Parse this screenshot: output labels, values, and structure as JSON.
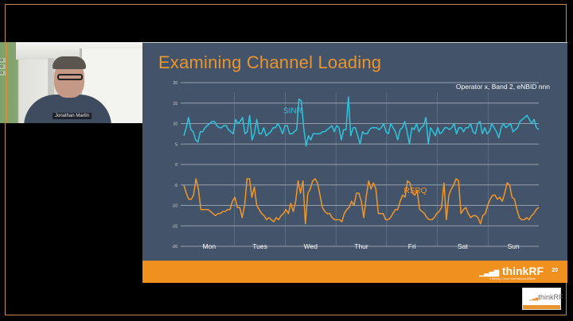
{
  "webcam": {
    "participant_name": "Jonathan Martin"
  },
  "slide": {
    "title": "Examining Channel Loading",
    "subtitle": "Operator x, Band 2, eNBID nnn",
    "page_number": "20",
    "footer_logo": "thinkRF",
    "footer_tagline": "A Wesley Clover International Affiliate",
    "colors": {
      "background": "#43546a",
      "title": "#e8952f",
      "footer": "#f0901e",
      "sinr": "#2ec4dd",
      "rsrq": "#f0962a"
    }
  },
  "corner_logo": {
    "text": "thinkRF"
  },
  "chart_data": {
    "type": "line",
    "title": "",
    "xlabel": "",
    "ylabel": "",
    "ylim": [
      -20,
      20
    ],
    "yticks": [
      20,
      15,
      10,
      5,
      0,
      -5,
      -10,
      -15,
      -20
    ],
    "grid": true,
    "categories": [
      "Mon",
      "Tues",
      "Wed",
      "Thur",
      "Fri",
      "Sat",
      "Sun"
    ],
    "series": [
      {
        "name": "SINR",
        "color": "#2ec4dd",
        "label_position": [
          0.28,
          12.5
        ],
        "values": [
          7,
          9,
          11.5,
          8.5,
          8,
          6,
          5.5,
          8,
          8,
          9,
          9.5,
          10,
          10.5,
          10.5,
          9.5,
          9,
          9,
          9.5,
          9.5,
          8.5,
          8,
          7.5,
          11,
          10,
          10.5,
          11.5,
          7.5,
          8,
          12,
          6,
          7.5,
          11,
          7.5,
          7.5,
          9,
          7,
          7.5,
          8,
          9,
          9,
          10,
          9,
          7.5,
          9.5,
          9.5,
          7.5,
          7.5,
          8,
          8.5,
          16,
          15.5,
          9,
          4.5,
          7,
          6,
          7.5,
          7.5,
          7.5,
          7.5,
          8,
          8,
          8.5,
          9,
          9.5,
          8,
          9.5,
          9,
          6,
          8.5,
          8.5,
          16.5,
          7,
          9,
          9,
          7,
          5,
          8,
          7.5,
          7.5,
          8.5,
          9,
          9,
          9,
          8.5,
          9,
          10,
          8,
          7.5,
          10,
          9,
          8,
          6,
          8.5,
          9,
          10.5,
          8,
          5,
          9,
          8.5,
          10,
          8,
          9,
          9.5,
          11.5,
          5,
          9,
          8,
          7,
          9,
          7.5,
          8,
          9,
          9,
          8.5,
          9,
          10,
          7.5,
          9,
          9,
          8,
          9,
          9,
          10,
          8,
          7.5,
          10,
          10.5,
          7.5,
          9,
          7.5,
          8,
          10,
          9,
          8,
          6.5,
          9,
          10,
          9,
          9.5,
          10,
          8,
          8.5,
          9,
          10.5,
          11,
          11.5,
          12,
          11,
          10,
          11,
          9,
          8.5
        ]
      },
      {
        "name": "RSRQ",
        "color": "#f0962a",
        "label_position": [
          0.62,
          -7
        ],
        "values": [
          -5,
          -7,
          -8.5,
          -8.5,
          -7.5,
          -3.5,
          -6,
          -11,
          -11,
          -11,
          -11,
          -11.5,
          -12,
          -12.5,
          -12,
          -12,
          -11.5,
          -11.5,
          -11,
          -11,
          -9,
          -8,
          -10.5,
          -10.5,
          -13,
          -10,
          -3.5,
          -3.5,
          -8,
          -5.5,
          -10,
          -11,
          -12,
          -12.5,
          -13.5,
          -13,
          -13.5,
          -14,
          -13,
          -13.5,
          -12.5,
          -12,
          -11,
          -12,
          -9.5,
          -11.5,
          -9,
          -4,
          -7,
          -4,
          -14.5,
          -7,
          -6,
          -4,
          -3.5,
          -4.5,
          -7.5,
          -10.5,
          -11.5,
          -12,
          -12,
          -13,
          -13.5,
          -13.5,
          -13.5,
          -14,
          -12,
          -11,
          -10.5,
          -9,
          -10,
          -7,
          -7,
          -9,
          -13,
          -8,
          -4,
          -6,
          -4.5,
          -6,
          -12,
          -12,
          -12,
          -13.5,
          -13.5,
          -13,
          -12,
          -11,
          -11,
          -9,
          -7.5,
          -8,
          -4,
          -4.5,
          -7,
          -7.5,
          -6.5,
          -11,
          -11.5,
          -12,
          -13,
          -13.5,
          -13.5,
          -13,
          -12,
          -11.5,
          -10.5,
          -4.5,
          -13.5,
          -7.5,
          -6,
          -5,
          -3.5,
          -4,
          -12,
          -11,
          -10.5,
          -12,
          -13,
          -12.5,
          -12.5,
          -13,
          -14.5,
          -12.5,
          -12,
          -10,
          -8.5,
          -7.5,
          -7.5,
          -8.5,
          -8,
          -9,
          -7,
          -4.5,
          -5,
          -8,
          -8.5,
          -11,
          -13,
          -13.5,
          -13.5,
          -13,
          -13.5,
          -12.5,
          -12,
          -11,
          -10.5
        ]
      }
    ],
    "annotations": [
      "Operator x, Band 2, eNBID nnn"
    ]
  }
}
